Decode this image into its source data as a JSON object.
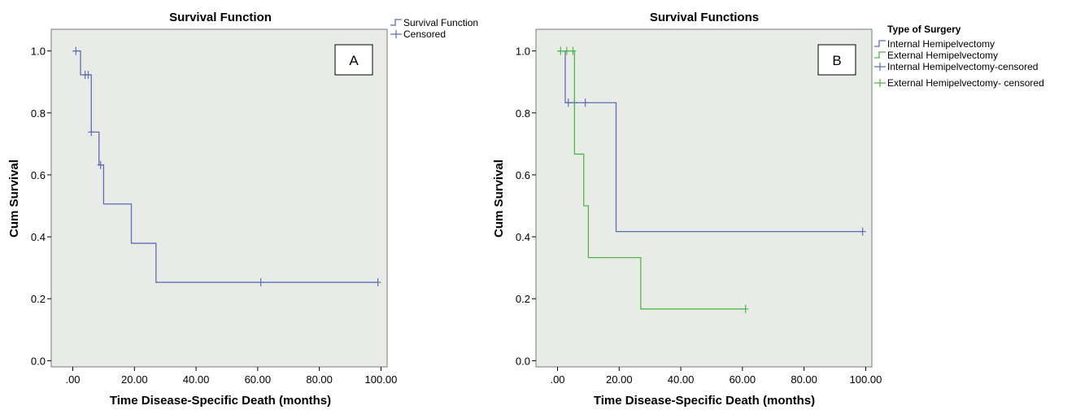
{
  "colors": {
    "blue": "#5b6fb5",
    "green": "#4db84a",
    "plot_bg": "#e9ebe6",
    "frame": "#7a7a7a"
  },
  "chart_data": [
    {
      "type": "line",
      "step": "post",
      "title": "Survival Function",
      "panel_label": "A",
      "xlabel": "Time Disease-Specific Death (months)",
      "ylabel": "Cum Survival",
      "xlim": [
        -7,
        102
      ],
      "ylim": [
        -0.02,
        1.07
      ],
      "x_ticks": [
        0,
        20,
        40,
        60,
        80,
        100
      ],
      "x_tick_labels": [
        ".00",
        "20.00",
        "40.00",
        "60.00",
        "80.00",
        "100.00"
      ],
      "y_ticks": [
        0,
        0.2,
        0.4,
        0.6,
        0.8,
        1.0
      ],
      "y_tick_labels": [
        "0.0",
        "0.2",
        "0.4",
        "0.6",
        "0.8",
        "1.0"
      ],
      "legend": {
        "position": "right-outside",
        "title": "",
        "entries": [
          {
            "label": "Survival Function",
            "kind": "step"
          },
          {
            "label": "Censored",
            "kind": "censor"
          }
        ]
      },
      "series": [
        {
          "color_key": "blue",
          "steps": [
            [
              0,
              1.0
            ],
            [
              2.5,
              0.923
            ],
            [
              6,
              0.738
            ],
            [
              8.5,
              0.632
            ],
            [
              10,
              0.506
            ],
            [
              19,
              0.379
            ],
            [
              27,
              0.253
            ],
            [
              99,
              0.253
            ]
          ],
          "censored": [
            [
              1,
              1.0
            ],
            [
              4,
              0.923
            ],
            [
              5,
              0.923
            ],
            [
              6,
              0.738
            ],
            [
              9,
              0.632
            ],
            [
              61,
              0.253
            ],
            [
              99,
              0.253
            ]
          ]
        }
      ]
    },
    {
      "type": "line",
      "step": "post",
      "title": "Survival Functions",
      "panel_label": "B",
      "xlabel": "Time Disease-Specific Death (months)",
      "ylabel": "Cum Survival",
      "xlim": [
        -7,
        102
      ],
      "ylim": [
        -0.02,
        1.07
      ],
      "x_ticks": [
        0,
        20,
        40,
        60,
        80,
        100
      ],
      "x_tick_labels": [
        ".00",
        "20.00",
        "40.00",
        "60.00",
        "80.00",
        "100.00"
      ],
      "y_ticks": [
        0,
        0.2,
        0.4,
        0.6,
        0.8,
        1.0
      ],
      "y_tick_labels": [
        "0.0",
        "0.2",
        "0.4",
        "0.6",
        "0.8",
        "1.0"
      ],
      "legend": {
        "position": "right-outside",
        "title": "Type of Surgery",
        "entries": [
          {
            "label": "Internal Hemipelvectomy",
            "kind": "step",
            "color_key": "blue"
          },
          {
            "label": "External Hemipelvectomy",
            "kind": "step",
            "color_key": "green"
          },
          {
            "label": "Internal Hemipelvectomy-censored",
            "kind": "censor",
            "color_key": "blue"
          },
          {
            "label": "External Hemipelvectomy- censored",
            "kind": "censor",
            "color_key": "green"
          }
        ]
      },
      "series": [
        {
          "name": "Internal Hemipelvectomy",
          "color_key": "blue",
          "steps": [
            [
              0,
              1.0
            ],
            [
              2.5,
              0.833
            ],
            [
              19,
              0.417
            ],
            [
              99,
              0.417
            ]
          ],
          "censored": [
            [
              3.5,
              0.833
            ],
            [
              5.5,
              0.833
            ],
            [
              9,
              0.833
            ],
            [
              99,
              0.417
            ]
          ]
        },
        {
          "name": "External Hemipelvectomy",
          "color_key": "green",
          "steps": [
            [
              0,
              1.0
            ],
            [
              5.5,
              0.667
            ],
            [
              8.5,
              0.5
            ],
            [
              10,
              0.333
            ],
            [
              27,
              0.167
            ],
            [
              61,
              0.167
            ]
          ],
          "censored": [
            [
              1,
              1.0
            ],
            [
              3,
              1.0
            ],
            [
              5,
              1.0
            ],
            [
              61,
              0.167
            ]
          ]
        }
      ]
    }
  ]
}
